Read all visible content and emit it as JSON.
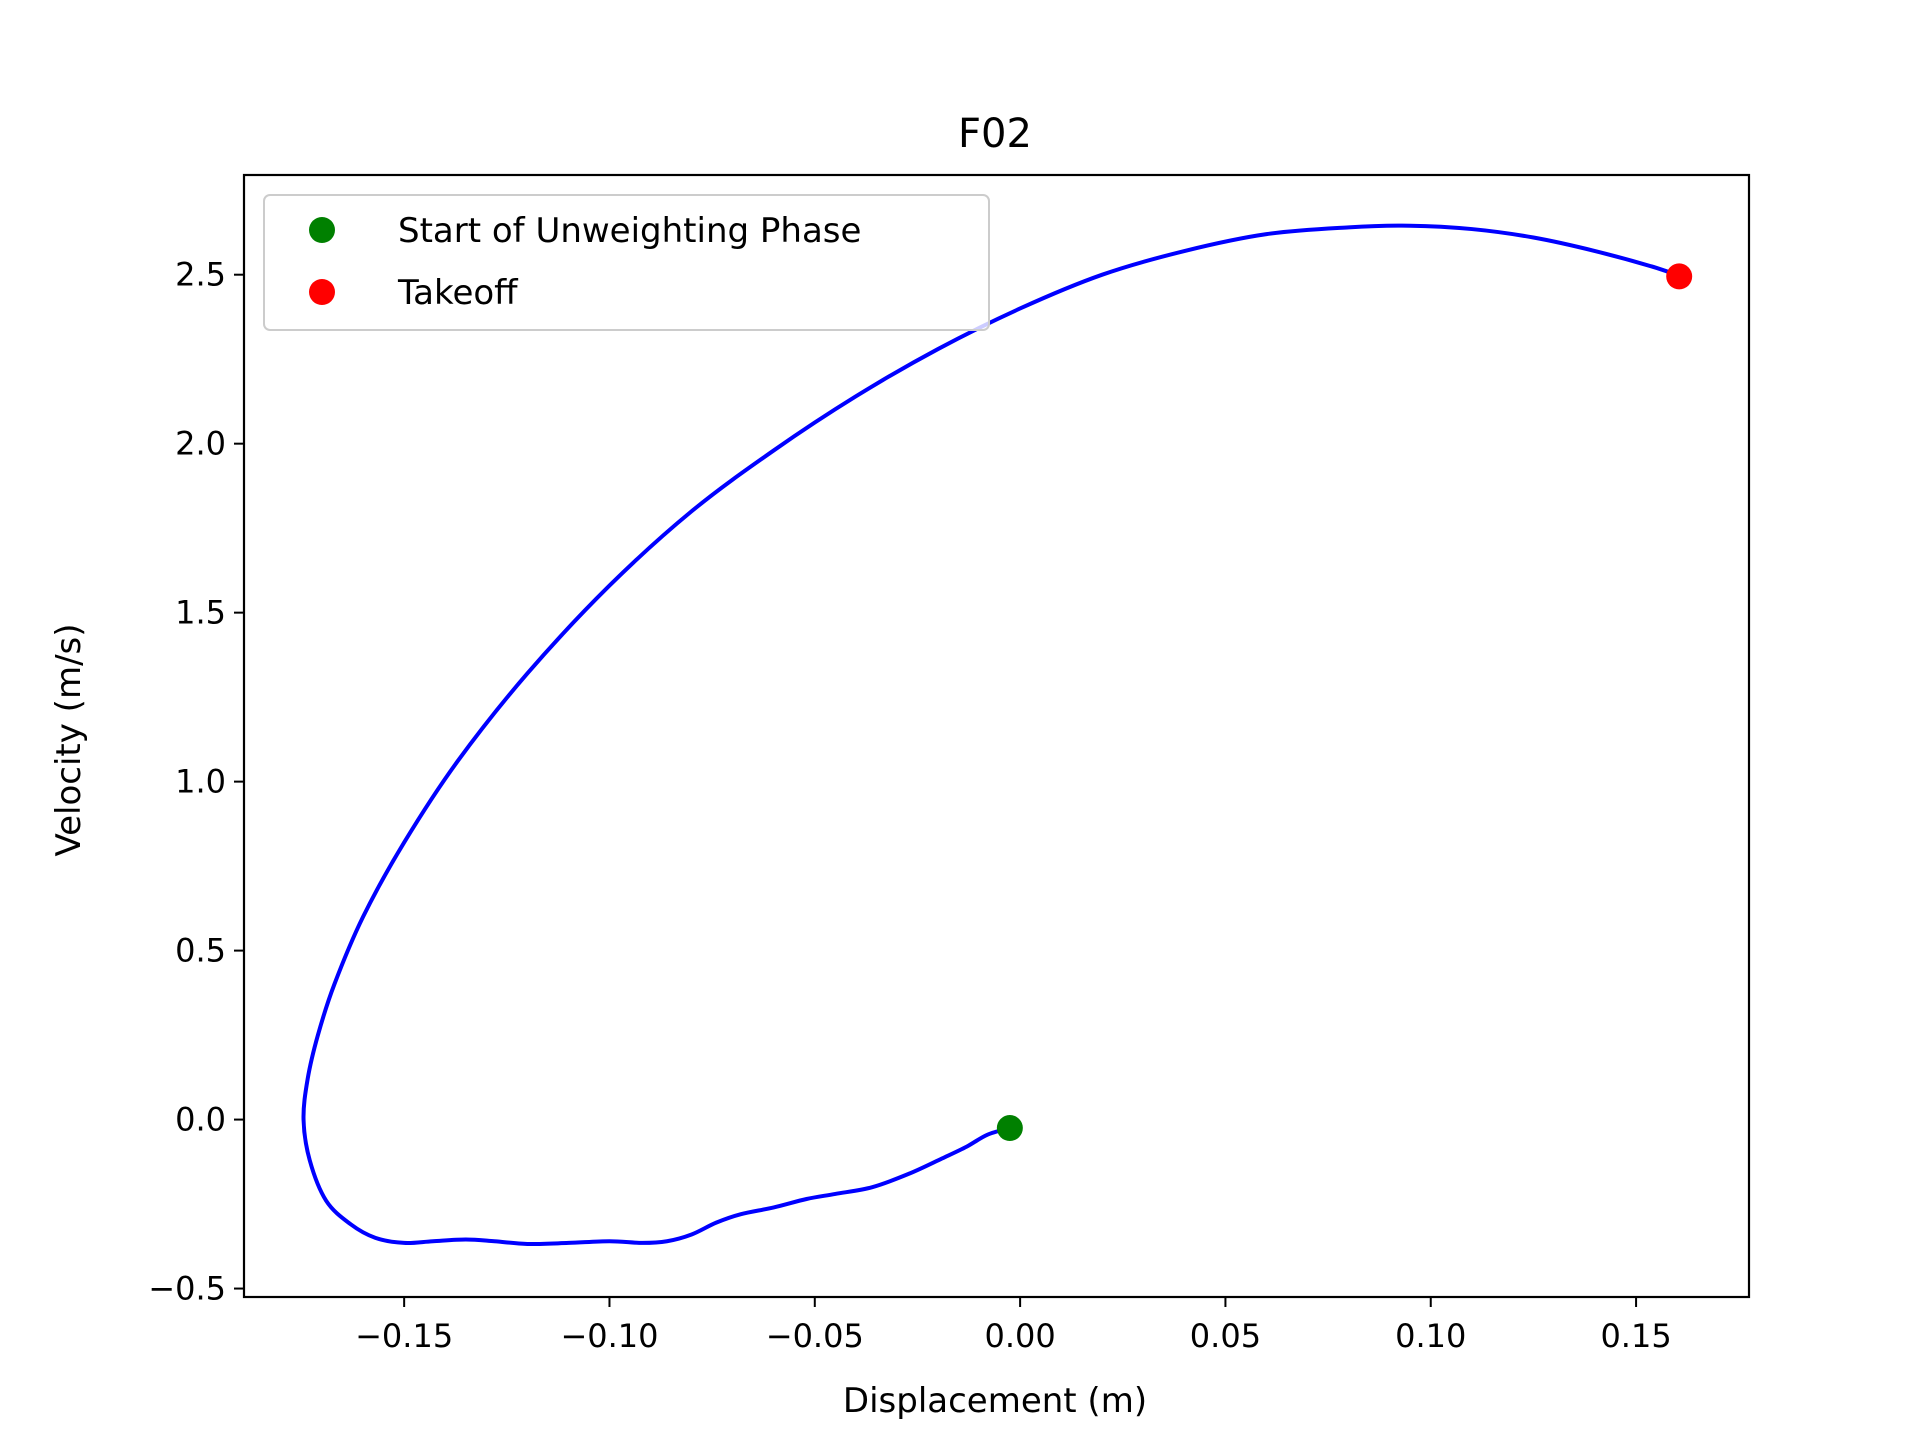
{
  "chart_data": {
    "type": "line",
    "title": "F02",
    "xlabel": "Displacement (m)",
    "ylabel": "Velocity (m/s)",
    "xlim": [
      -0.189,
      0.1775
    ],
    "ylim": [
      -0.525,
      2.795
    ],
    "xticks": [
      -0.15,
      -0.1,
      -0.05,
      0.0,
      0.05,
      0.1,
      0.15
    ],
    "xtick_labels": [
      "−0.15",
      "−0.10",
      "−0.05",
      "0.00",
      "0.05",
      "0.10",
      "0.15"
    ],
    "yticks": [
      -0.5,
      0.0,
      0.5,
      1.0,
      1.5,
      2.0,
      2.5
    ],
    "ytick_labels": [
      "−0.5",
      "0.0",
      "0.5",
      "1.0",
      "1.5",
      "2.0",
      "2.5"
    ],
    "grid": false,
    "legend_position": "upper-left",
    "series": [
      {
        "color": "#0000ff",
        "points": [
          [
            -0.0025,
            -0.025
          ],
          [
            -0.008,
            -0.045
          ],
          [
            -0.013,
            -0.08
          ],
          [
            -0.019,
            -0.115
          ],
          [
            -0.027,
            -0.16
          ],
          [
            -0.036,
            -0.2
          ],
          [
            -0.045,
            -0.22
          ],
          [
            -0.052,
            -0.235
          ],
          [
            -0.06,
            -0.26
          ],
          [
            -0.068,
            -0.28
          ],
          [
            -0.074,
            -0.305
          ],
          [
            -0.08,
            -0.34
          ],
          [
            -0.086,
            -0.36
          ],
          [
            -0.092,
            -0.365
          ],
          [
            -0.1,
            -0.36
          ],
          [
            -0.11,
            -0.365
          ],
          [
            -0.12,
            -0.368
          ],
          [
            -0.128,
            -0.36
          ],
          [
            -0.135,
            -0.355
          ],
          [
            -0.143,
            -0.36
          ],
          [
            -0.15,
            -0.365
          ],
          [
            -0.157,
            -0.35
          ],
          [
            -0.163,
            -0.31
          ],
          [
            -0.169,
            -0.24
          ],
          [
            -0.173,
            -0.12
          ],
          [
            -0.1745,
            0.0
          ],
          [
            -0.1735,
            0.12
          ],
          [
            -0.171,
            0.25
          ],
          [
            -0.167,
            0.4
          ],
          [
            -0.16,
            0.6
          ],
          [
            -0.15,
            0.82
          ],
          [
            -0.137,
            1.06
          ],
          [
            -0.12,
            1.32
          ],
          [
            -0.1,
            1.58
          ],
          [
            -0.08,
            1.8
          ],
          [
            -0.06,
            1.98
          ],
          [
            -0.04,
            2.14
          ],
          [
            -0.02,
            2.28
          ],
          [
            0.0,
            2.4
          ],
          [
            0.02,
            2.5
          ],
          [
            0.04,
            2.57
          ],
          [
            0.06,
            2.62
          ],
          [
            0.08,
            2.64
          ],
          [
            0.095,
            2.645
          ],
          [
            0.11,
            2.635
          ],
          [
            0.125,
            2.61
          ],
          [
            0.14,
            2.57
          ],
          [
            0.155,
            2.52
          ],
          [
            0.1605,
            2.495
          ]
        ]
      }
    ],
    "markers": [
      {
        "name": "Start of Unweighting Phase",
        "color": "#008000",
        "x": -0.0025,
        "y": -0.025
      },
      {
        "name": "Takeoff",
        "color": "#ff0000",
        "x": 0.1605,
        "y": 2.495
      }
    ]
  }
}
